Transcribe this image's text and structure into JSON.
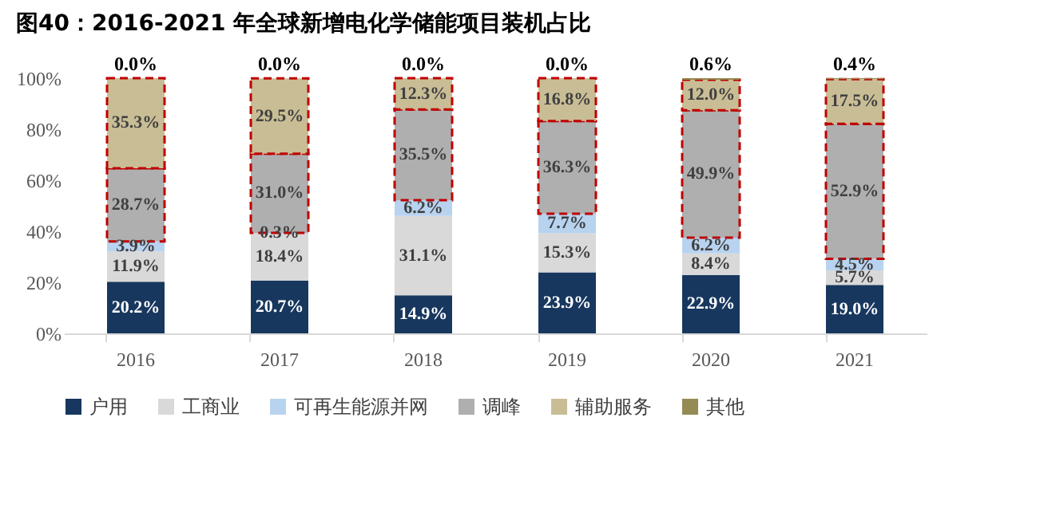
{
  "chart_data": {
    "type": "bar",
    "stacked": true,
    "title": "图40：2016-2021 年全球新增电化学储能项目装机占比",
    "categories": [
      "2016",
      "2017",
      "2018",
      "2019",
      "2020",
      "2021"
    ],
    "series": [
      {
        "name": "户用",
        "color": "#17375e",
        "values": [
          20.2,
          20.7,
          14.9,
          23.9,
          22.9,
          19.0
        ],
        "value_labels": [
          "20.2%",
          "20.7%",
          "14.9%",
          "23.9%",
          "22.9%",
          "19.0%"
        ]
      },
      {
        "name": "工商业",
        "color": "#d9d9d9",
        "values": [
          11.9,
          18.4,
          31.1,
          15.3,
          8.4,
          5.7
        ],
        "value_labels": [
          "11.9%",
          "18.4%",
          "31.1%",
          "15.3%",
          "8.4%",
          "5.7%"
        ]
      },
      {
        "name": "可再生能源并网",
        "color": "#b8d3ef",
        "values": [
          3.9,
          0.3,
          6.2,
          7.7,
          6.2,
          4.5
        ],
        "value_labels": [
          "3.9%",
          "0.3%",
          "6.2%",
          "7.7%",
          "6.2%",
          "4.5%"
        ]
      },
      {
        "name": "调峰",
        "color": "#afafaf",
        "line_style": "dashed",
        "values": [
          28.7,
          31.0,
          35.5,
          36.3,
          49.9,
          52.9
        ],
        "value_labels": [
          "28.7%",
          "31.0%",
          "35.5%",
          "36.3%",
          "49.9%",
          "52.9%"
        ]
      },
      {
        "name": "辅助服务",
        "color": "#c9bd95",
        "line_style": "dashed",
        "values": [
          35.3,
          29.5,
          12.3,
          16.8,
          12.0,
          17.5
        ],
        "value_labels": [
          "35.3%",
          "29.5%",
          "12.3%",
          "16.8%",
          "12.0%",
          "17.5%"
        ]
      },
      {
        "name": "其他",
        "color": "#948a54",
        "values": [
          0.0,
          0.0,
          0.0,
          0.0,
          0.6,
          0.4
        ],
        "value_labels": [
          "0.0%",
          "0.0%",
          "0.0%",
          "0.0%",
          "0.6%",
          "0.4%"
        ]
      }
    ],
    "ylim": [
      0,
      100
    ],
    "yticks": [
      {
        "value": 0,
        "label": "0%"
      },
      {
        "value": 20,
        "label": "20%"
      },
      {
        "value": 40,
        "label": "40%"
      },
      {
        "value": 60,
        "label": "60%"
      },
      {
        "value": 80,
        "label": "80%"
      },
      {
        "value": 100,
        "label": "100%"
      }
    ],
    "grid": false,
    "legend": "bottom"
  }
}
